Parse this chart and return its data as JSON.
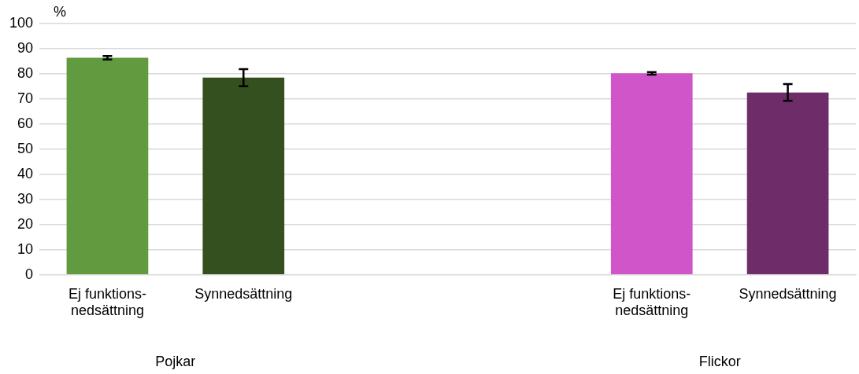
{
  "chart_data": {
    "type": "bar",
    "ylabel": "%",
    "categories": [
      "Ej funktions-nedsättning",
      "Synnedsättning",
      null,
      null,
      "Ej funktions-nedsättning",
      "Synnedsättning"
    ],
    "values": [
      86.4,
      78.5,
      null,
      null,
      80.2,
      72.6
    ],
    "errors": [
      0.7,
      3.4,
      null,
      null,
      0.5,
      3.3
    ],
    "colors": [
      "#629b3f",
      "#34501f",
      "#629b3f",
      "#d055c9",
      "#d055c9",
      "#6e2c68"
    ],
    "ylim": [
      0,
      100
    ],
    "yticks": [
      0,
      10,
      20,
      30,
      40,
      50,
      60,
      70,
      80,
      90,
      100
    ],
    "grid": "y",
    "annotations": [
      "Pojkar",
      "Flickor"
    ]
  }
}
